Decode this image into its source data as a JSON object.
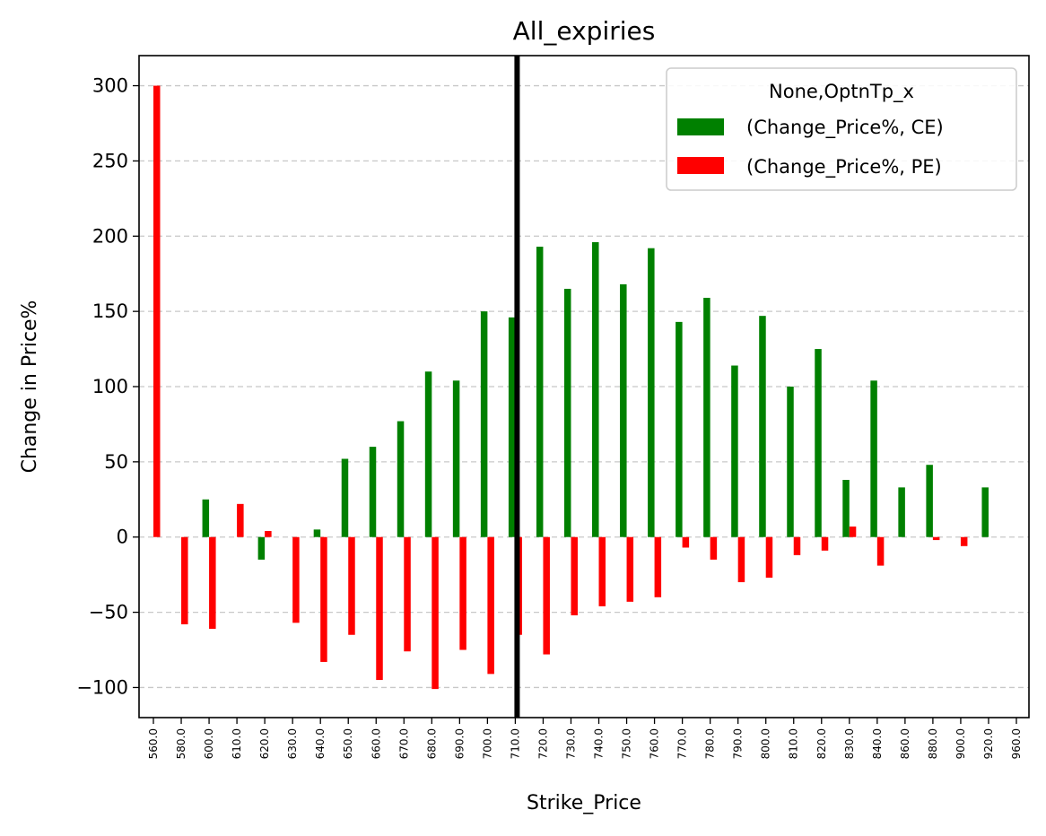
{
  "chart_data": {
    "type": "bar",
    "title": "All_expiries",
    "xlabel": "Strike_Price",
    "ylabel": "Change in Price%",
    "categories": [
      "560.0",
      "580.0",
      "600.0",
      "610.0",
      "620.0",
      "630.0",
      "640.0",
      "650.0",
      "660.0",
      "670.0",
      "680.0",
      "690.0",
      "700.0",
      "710.0",
      "720.0",
      "730.0",
      "740.0",
      "750.0",
      "760.0",
      "770.0",
      "780.0",
      "790.0",
      "800.0",
      "810.0",
      "820.0",
      "830.0",
      "840.0",
      "860.0",
      "880.0",
      "900.0",
      "920.0",
      "960.0"
    ],
    "series": [
      {
        "name": "(Change_Price%, CE)",
        "color": "#008000",
        "values": [
          0,
          0,
          25,
          0,
          -15,
          0,
          5,
          52,
          60,
          77,
          110,
          104,
          150,
          146,
          193,
          165,
          196,
          168,
          192,
          143,
          159,
          114,
          147,
          100,
          125,
          38,
          104,
          33,
          48,
          0,
          33,
          0
        ]
      },
      {
        "name": "(Change_Price%, PE)",
        "color": "#ff0000",
        "values": [
          300,
          -58,
          -61,
          22,
          4,
          -57,
          -83,
          -65,
          -95,
          -76,
          -101,
          -75,
          -91,
          -65,
          -78,
          -52,
          -46,
          -43,
          -40,
          -7,
          -15,
          -30,
          -27,
          -12,
          -9,
          7,
          -19,
          0,
          -2,
          -6,
          0,
          0
        ]
      }
    ],
    "ylim": [
      -120,
      320
    ],
    "yticks": [
      -100,
      -50,
      0,
      50,
      100,
      150,
      200,
      250,
      300
    ],
    "grid": "horizontal-dashed",
    "legend": {
      "title": "None,OptnTp_x",
      "placement": "top-right"
    },
    "vertical_marker": {
      "category": "710.0",
      "color": "#000000"
    }
  }
}
